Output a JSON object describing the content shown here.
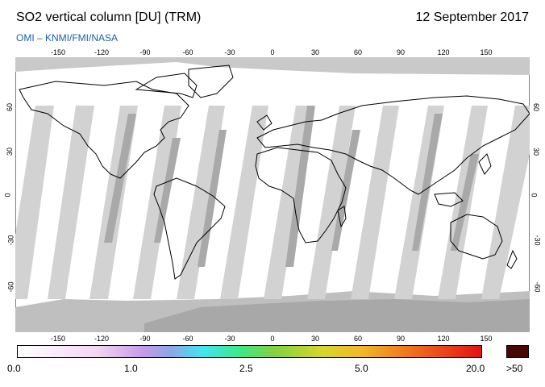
{
  "header": {
    "title": "SO2 vertical column [DU] (TRM)",
    "date": "12 September 2017",
    "credit": "OMI  –  KNMI/FMI/NASA"
  },
  "map": {
    "longitude_ticks": [
      "-150",
      "-120",
      "-90",
      "-60",
      "-30",
      "0",
      "30",
      "60",
      "90",
      "120",
      "150"
    ],
    "latitude_ticks": [
      "60",
      "30",
      "0",
      "-30",
      "-60"
    ]
  },
  "colorbar": {
    "labels": [
      "0.0",
      "1.0",
      "2.5",
      "5.0",
      "20.0"
    ],
    "over_label": ">50",
    "colors": {
      "low": "#ffffff",
      "mid_low": "#c49be8",
      "mid": "#3fe6f0",
      "mid_high": "#d8d62a",
      "high": "#e01515",
      "over": "#4a0505"
    }
  }
}
